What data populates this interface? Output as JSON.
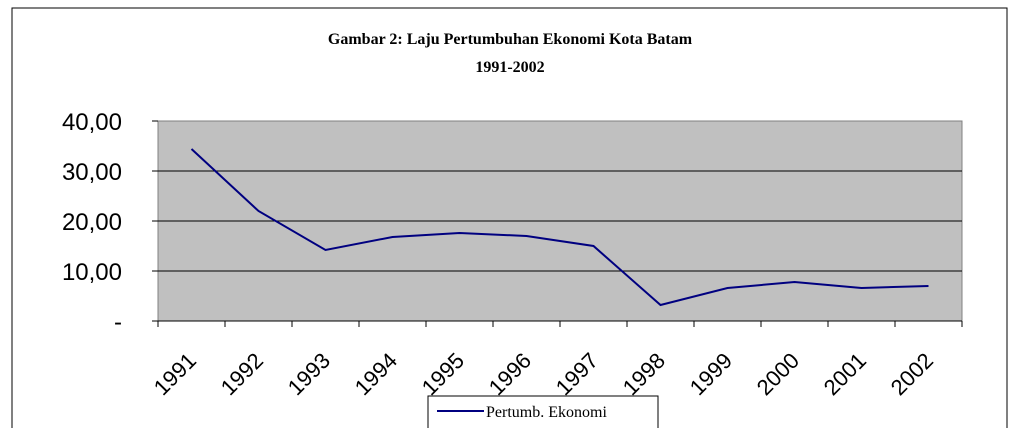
{
  "chart_data": {
    "type": "line",
    "title": "Gambar 2: Laju Pertumbuhan Ekonomi Kota Batam",
    "subtitle": "1991-2002",
    "categories": [
      "1991",
      "1992",
      "1993",
      "1994",
      "1995",
      "1996",
      "1997",
      "1998",
      "1999",
      "2000",
      "2001",
      "2002"
    ],
    "series": [
      {
        "name": "Pertumb. Ekonomi",
        "color": "#000080",
        "values": [
          34.4,
          22.0,
          14.2,
          16.8,
          17.6,
          17.0,
          15.0,
          3.2,
          6.6,
          7.8,
          6.6,
          7.0
        ]
      }
    ],
    "ylim": [
      0,
      40
    ],
    "yticks": [
      {
        "value": 0,
        "label": "-"
      },
      {
        "value": 10,
        "label": "10,00"
      },
      {
        "value": 20,
        "label": "20,00"
      },
      {
        "value": 30,
        "label": "30,00"
      },
      {
        "value": 40,
        "label": "40,00"
      }
    ],
    "grid": true,
    "legend": "bottom"
  }
}
